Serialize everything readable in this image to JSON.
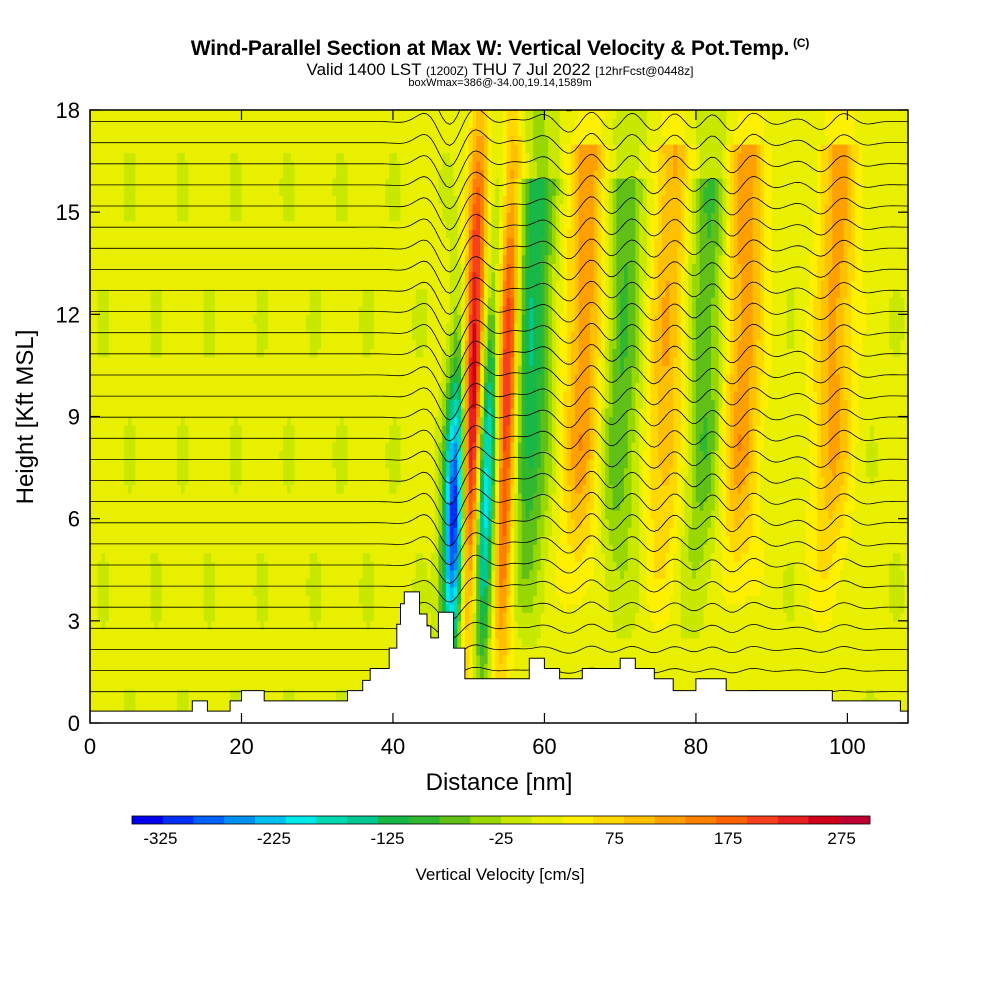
{
  "header": {
    "title": "Wind-Parallel Section at Max W: Vertical Velocity & Pot.Temp.",
    "title_suffix": "(C)",
    "valid_prefix": "Valid 1400 LST",
    "valid_utc": "(1200Z)",
    "valid_date": "THU 7 Jul 2022",
    "forecast_tag": "[12hrFcst@0448z]",
    "box_info": "boxWmax=386@-34.00,19.14,1589m"
  },
  "chart_data": {
    "type": "heatmap",
    "xlabel": "Distance [nm]",
    "ylabel": "Height [Kft MSL]",
    "xlim": [
      0,
      108
    ],
    "ylim": [
      0,
      18
    ],
    "x_ticks": [
      0,
      20,
      40,
      60,
      80,
      100
    ],
    "y_ticks": [
      0,
      3,
      6,
      9,
      12,
      15,
      18
    ],
    "colorbar": {
      "label": "Vertical Velocity [cm/s]",
      "tick_labels": [
        -325,
        -225,
        -125,
        -25,
        75,
        175,
        275
      ],
      "min": -350,
      "max": 300,
      "colors": [
        "#0000f0",
        "#0030f8",
        "#0060f8",
        "#0090f0",
        "#00c0f0",
        "#00e8e8",
        "#00d8b0",
        "#00c890",
        "#18b848",
        "#30b830",
        "#60c018",
        "#98d800",
        "#c8e800",
        "#e8f000",
        "#fff000",
        "#ffd800",
        "#ffc000",
        "#ffa000",
        "#ff8000",
        "#ff6000",
        "#f84020",
        "#e82020",
        "#d00018",
        "#c00030"
      ]
    },
    "terrain_profile": [
      [
        0,
        0.35
      ],
      [
        13.5,
        0.35
      ],
      [
        13.5,
        0.65
      ],
      [
        15.5,
        0.65
      ],
      [
        15.5,
        0.35
      ],
      [
        18.5,
        0.35
      ],
      [
        18.5,
        0.65
      ],
      [
        20,
        0.65
      ],
      [
        20,
        0.95
      ],
      [
        23,
        0.95
      ],
      [
        23,
        0.65
      ],
      [
        34,
        0.65
      ],
      [
        34,
        0.95
      ],
      [
        36,
        0.95
      ],
      [
        36,
        1.25
      ],
      [
        37,
        1.25
      ],
      [
        37,
        1.6
      ],
      [
        39.5,
        1.6
      ],
      [
        39.5,
        2.2
      ],
      [
        40.5,
        2.2
      ],
      [
        40.5,
        2.9
      ],
      [
        41,
        2.9
      ],
      [
        41,
        3.5
      ],
      [
        41.5,
        3.5
      ],
      [
        41.5,
        3.85
      ],
      [
        43.5,
        3.85
      ],
      [
        43.5,
        3.2
      ],
      [
        44.5,
        3.2
      ],
      [
        44.5,
        2.85
      ],
      [
        45,
        2.85
      ],
      [
        45,
        2.5
      ],
      [
        46,
        2.5
      ],
      [
        46,
        3.25
      ],
      [
        48,
        3.25
      ],
      [
        48,
        2.2
      ],
      [
        49.5,
        2.2
      ],
      [
        49.5,
        1.3
      ],
      [
        58,
        1.3
      ],
      [
        58,
        1.9
      ],
      [
        60,
        1.9
      ],
      [
        60,
        1.6
      ],
      [
        62,
        1.6
      ],
      [
        62,
        1.3
      ],
      [
        65,
        1.3
      ],
      [
        65,
        1.6
      ],
      [
        70,
        1.6
      ],
      [
        70,
        1.9
      ],
      [
        72,
        1.9
      ],
      [
        72,
        1.6
      ],
      [
        74.5,
        1.6
      ],
      [
        74.5,
        1.3
      ],
      [
        77,
        1.3
      ],
      [
        77,
        0.95
      ],
      [
        80,
        0.95
      ],
      [
        80,
        1.3
      ],
      [
        84,
        1.3
      ],
      [
        84,
        0.95
      ],
      [
        98,
        0.95
      ],
      [
        98,
        0.65
      ],
      [
        107,
        0.65
      ],
      [
        107,
        0.35
      ],
      [
        108,
        0.35
      ]
    ],
    "updrafts": [
      {
        "x": 50.5,
        "z_top": 17.5,
        "max_cm_s": 300
      },
      {
        "x": 55.0,
        "z_top": 17.5,
        "max_cm_s": 250
      },
      {
        "x": 65.0,
        "z_top": 17.0,
        "max_cm_s": 120
      },
      {
        "x": 76.0,
        "z_top": 17.0,
        "max_cm_s": 100
      },
      {
        "x": 86.0,
        "z_top": 17.0,
        "max_cm_s": 120
      },
      {
        "x": 98.0,
        "z_top": 17.0,
        "max_cm_s": 110
      }
    ],
    "downdrafts": [
      {
        "x": 48.5,
        "z_top": 11.0,
        "min_cm_s": -350
      },
      {
        "x": 52.5,
        "z_top": 13.0,
        "min_cm_s": -250
      },
      {
        "x": 58.0,
        "z_top": 16.0,
        "min_cm_s": -140
      },
      {
        "x": 70.0,
        "z_top": 16.0,
        "min_cm_s": -90
      },
      {
        "x": 81.0,
        "z_top": 16.0,
        "min_cm_s": -90
      }
    ]
  }
}
